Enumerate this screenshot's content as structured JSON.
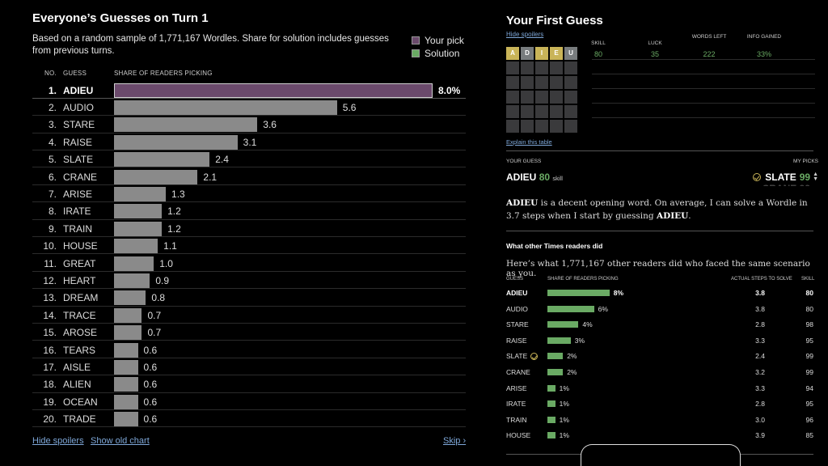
{
  "left": {
    "title": "Everyone’s Guesses on Turn 1",
    "description": "Based on a random sample of 1,771,167 Wordles. Share for solution includes guesses from previous turns.",
    "legend": {
      "your_pick": "Your pick",
      "solution": "Solution"
    },
    "colors": {
      "your_pick": "#6b4a6c",
      "solution": "#6aaa64",
      "bar": "#8a8a8a"
    },
    "columns": {
      "no": "NO.",
      "guess": "GUESS",
      "share": "SHARE OF READERS PICKING"
    },
    "max_value": 8.0,
    "rows": [
      {
        "rank": "1.",
        "word": "ADIEU",
        "value": 8.0,
        "label": "8.0%",
        "pick": true
      },
      {
        "rank": "2.",
        "word": "AUDIO",
        "value": 5.6,
        "label": "5.6"
      },
      {
        "rank": "3.",
        "word": "STARE",
        "value": 3.6,
        "label": "3.6"
      },
      {
        "rank": "4.",
        "word": "RAISE",
        "value": 3.1,
        "label": "3.1"
      },
      {
        "rank": "5.",
        "word": "SLATE",
        "value": 2.4,
        "label": "2.4"
      },
      {
        "rank": "6.",
        "word": "CRANE",
        "value": 2.1,
        "label": "2.1"
      },
      {
        "rank": "7.",
        "word": "ARISE",
        "value": 1.3,
        "label": "1.3"
      },
      {
        "rank": "8.",
        "word": "IRATE",
        "value": 1.2,
        "label": "1.2"
      },
      {
        "rank": "9.",
        "word": "TRAIN",
        "value": 1.2,
        "label": "1.2"
      },
      {
        "rank": "10.",
        "word": "HOUSE",
        "value": 1.1,
        "label": "1.1"
      },
      {
        "rank": "11.",
        "word": "GREAT",
        "value": 1.0,
        "label": "1.0"
      },
      {
        "rank": "12.",
        "word": "HEART",
        "value": 0.9,
        "label": "0.9"
      },
      {
        "rank": "13.",
        "word": "DREAM",
        "value": 0.8,
        "label": "0.8"
      },
      {
        "rank": "14.",
        "word": "TRACE",
        "value": 0.7,
        "label": "0.7"
      },
      {
        "rank": "15.",
        "word": "AROSE",
        "value": 0.7,
        "label": "0.7"
      },
      {
        "rank": "16.",
        "word": "TEARS",
        "value": 0.6,
        "label": "0.6"
      },
      {
        "rank": "17.",
        "word": "AISLE",
        "value": 0.6,
        "label": "0.6"
      },
      {
        "rank": "18.",
        "word": "ALIEN",
        "value": 0.6,
        "label": "0.6"
      },
      {
        "rank": "19.",
        "word": "OCEAN",
        "value": 0.6,
        "label": "0.6"
      },
      {
        "rank": "20.",
        "word": "TRADE",
        "value": 0.6,
        "label": "0.6"
      }
    ],
    "links": {
      "hide_spoilers": "Hide spoilers",
      "show_old_chart": "Show old chart",
      "skip": "Skip ›"
    }
  },
  "right": {
    "title": "Your First Guess",
    "hide_spoilers": "Hide spoilers",
    "first_guess_tiles": [
      {
        "letter": "A",
        "state": "y"
      },
      {
        "letter": "D",
        "state": "g"
      },
      {
        "letter": "I",
        "state": "y"
      },
      {
        "letter": "E",
        "state": "y"
      },
      {
        "letter": "U",
        "state": "g"
      }
    ],
    "stats": [
      {
        "label": "SKILL",
        "value": "80"
      },
      {
        "label": "LUCK",
        "value": "35"
      },
      {
        "label": "WORDS LEFT",
        "value": "222"
      },
      {
        "label": "INFO GAINED",
        "value": "33%"
      }
    ],
    "explain": "Explain this table",
    "your_guess_label": "YOUR GUESS",
    "my_picks_label": "MY PICKS",
    "your_guess": {
      "word": "ADIEU",
      "skill": "80",
      "skill_label": "skill"
    },
    "my_pick": {
      "word": "SLATE",
      "skill": "99"
    },
    "summary": {
      "word": "ADIEU",
      "text1": " is a decent opening word. On average, I can solve a Wordle in 3.7 steps when I start by guessing ",
      "word2": "ADIEU",
      "text2": "."
    },
    "others_title": "What other Times readers did",
    "others_desc": "Here’s what 1,771,167 other readers did who faced the same scenario as you.",
    "others_columns": {
      "guess": "GUESS",
      "share": "SHARE OF READERS PICKING",
      "steps": "ACTUAL STEPS TO SOLVE",
      "skill": "SKILL"
    },
    "others": [
      {
        "word": "ADIEU",
        "pct": 8,
        "label": "8%",
        "steps": "3.8",
        "skill": "80",
        "first": true
      },
      {
        "word": "AUDIO",
        "pct": 6,
        "label": "6%",
        "steps": "3.8",
        "skill": "80"
      },
      {
        "word": "STARE",
        "pct": 4,
        "label": "4%",
        "steps": "2.8",
        "skill": "98"
      },
      {
        "word": "RAISE",
        "pct": 3,
        "label": "3%",
        "steps": "3.3",
        "skill": "95"
      },
      {
        "word": "SLATE",
        "pct": 2,
        "label": "2%",
        "steps": "2.4",
        "skill": "99",
        "target": true
      },
      {
        "word": "CRANE",
        "pct": 2,
        "label": "2%",
        "steps": "3.2",
        "skill": "99"
      },
      {
        "word": "ARISE",
        "pct": 1,
        "label": "1%",
        "steps": "3.3",
        "skill": "94"
      },
      {
        "word": "IRATE",
        "pct": 1,
        "label": "1%",
        "steps": "2.8",
        "skill": "95"
      },
      {
        "word": "TRAIN",
        "pct": 1,
        "label": "1%",
        "steps": "3.0",
        "skill": "96"
      },
      {
        "word": "HOUSE",
        "pct": 1,
        "label": "1%",
        "steps": "3.9",
        "skill": "85"
      }
    ]
  }
}
